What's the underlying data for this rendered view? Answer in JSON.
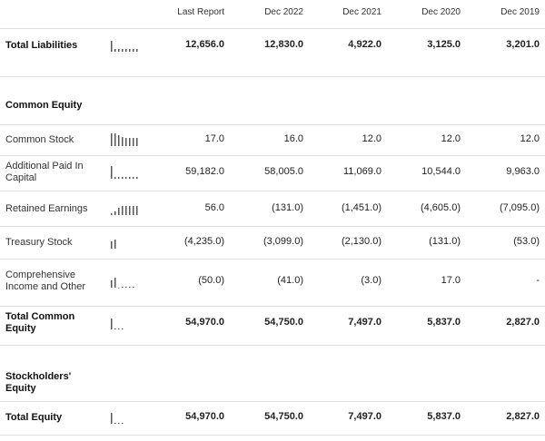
{
  "header": {
    "columns": [
      "Last Report",
      "Dec 2022",
      "Dec 2021",
      "Dec 2020",
      "Dec 2019"
    ]
  },
  "rows": [
    {
      "label": "Total Liabilities",
      "values": [
        "12,656.0",
        "12,830.0",
        "4,922.0",
        "3,125.0",
        "3,201.0"
      ]
    },
    {
      "label": "Common Equity"
    },
    {
      "label": "Common Stock",
      "values": [
        "17.0",
        "16.0",
        "12.0",
        "12.0",
        "12.0"
      ]
    },
    {
      "label": "Additional Paid In Capital",
      "values": [
        "59,182.0",
        "58,005.0",
        "11,069.0",
        "10,544.0",
        "9,963.0"
      ]
    },
    {
      "label": "Retained Earnings",
      "values": [
        "56.0",
        "(131.0)",
        "(1,451.0)",
        "(4,605.0)",
        "(7,095.0)"
      ]
    },
    {
      "label": "Treasury Stock",
      "values": [
        "(4,235.0)",
        "(3,099.0)",
        "(2,130.0)",
        "(131.0)",
        "(53.0)"
      ]
    },
    {
      "label": "Comprehensive Income and Other",
      "values": [
        "(50.0)",
        "(41.0)",
        "(3.0)",
        "17.0",
        "-"
      ]
    },
    {
      "label": "Total Common Equity",
      "values": [
        "54,970.0",
        "54,750.0",
        "7,497.0",
        "5,837.0",
        "2,827.0"
      ]
    },
    {
      "label": "Stockholders' Equity"
    },
    {
      "label": "Total Equity",
      "values": [
        "54,970.0",
        "54,750.0",
        "7,497.0",
        "5,837.0",
        "2,827.0"
      ]
    }
  ]
}
